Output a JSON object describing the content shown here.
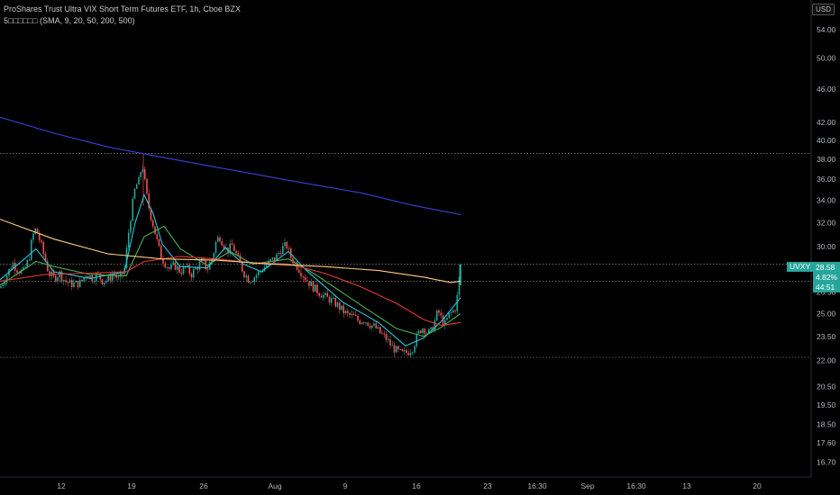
{
  "header": {
    "title": "ProShares Trust Ultra VIX Short Term Futures ETF, 1h, Cboe BZX",
    "indicator": "5□□□□□□ (SMA, 9, 20, 50, 200, 500)",
    "currency": "USD"
  },
  "last": {
    "symbol": "UVXY",
    "price": "28.58",
    "change": "4.82%",
    "countdown": "44:51"
  },
  "colors": {
    "background": "#000000",
    "up": "#26a69a",
    "down": "#ef5350",
    "sma9": "#26c6da",
    "sma20": "#4caf50",
    "sma50": "#e53935",
    "sma200": "#ffcc80",
    "sma500": "#3f3fd8"
  },
  "chart_data": {
    "type": "candlestick",
    "title": "ProShares Trust Ultra VIX Short Term Futures ETF, 1h, Cboe BZX",
    "y_scale": "log",
    "ylim": [
      16.2,
      58.0
    ],
    "y_ticks": [
      16.7,
      17.6,
      18.5,
      19.5,
      20.5,
      22.0,
      23.5,
      25.0,
      26.5,
      28.58,
      30.0,
      32.0,
      34.0,
      36.0,
      38.0,
      40.0,
      42.0,
      46.0,
      50.0,
      54.0
    ],
    "y_tick_labels": [
      "16.70",
      "17.60",
      "18.50",
      "19.50",
      "20.50",
      "22.00",
      "23.50",
      "25.00",
      "26.50",
      "",
      "30.00",
      "32.00",
      "34.00",
      "36.00",
      "38.00",
      "40.00",
      "42.00",
      "46.00",
      "50.00",
      "54.00"
    ],
    "x_ticks": [
      "12",
      "19",
      "26",
      "Aug",
      "9",
      "16",
      "23",
      "16:30",
      "Sep",
      "16:30",
      "13",
      "20"
    ],
    "horizontal_lines": [
      38.6,
      28.58,
      27.3,
      22.2
    ],
    "close_path": [
      [
        0,
        26.8
      ],
      [
        8,
        27.8
      ],
      [
        14,
        28.7
      ],
      [
        20,
        28.1
      ],
      [
        26,
        28.0
      ],
      [
        32,
        29.0
      ],
      [
        36,
        30.8
      ],
      [
        40,
        31.5
      ],
      [
        44,
        30.5
      ],
      [
        48,
        29.5
      ],
      [
        54,
        27.9
      ],
      [
        60,
        27.5
      ],
      [
        66,
        27.9
      ],
      [
        72,
        27.3
      ],
      [
        78,
        27.1
      ],
      [
        84,
        27.1
      ],
      [
        90,
        27.2
      ],
      [
        96,
        27.9
      ],
      [
        102,
        27.5
      ],
      [
        108,
        27.8
      ],
      [
        114,
        27.3
      ],
      [
        120,
        27.4
      ],
      [
        126,
        27.9
      ],
      [
        132,
        27.4
      ],
      [
        138,
        28.1
      ],
      [
        144,
        32.0
      ],
      [
        150,
        35.2
      ],
      [
        154,
        35.8
      ],
      [
        158,
        37.6
      ],
      [
        162,
        34.8
      ],
      [
        166,
        33.0
      ],
      [
        170,
        31.8
      ],
      [
        174,
        30.5
      ],
      [
        178,
        29.3
      ],
      [
        182,
        28.8
      ],
      [
        188,
        28.2
      ],
      [
        194,
        28.5
      ],
      [
        200,
        28.0
      ],
      [
        206,
        28.4
      ],
      [
        212,
        27.8
      ],
      [
        218,
        28.3
      ],
      [
        224,
        28.8
      ],
      [
        230,
        28.2
      ],
      [
        236,
        29.2
      ],
      [
        240,
        30.5
      ],
      [
        244,
        30.8
      ],
      [
        248,
        30.2
      ],
      [
        252,
        29.6
      ],
      [
        258,
        30.1
      ],
      [
        264,
        29.0
      ],
      [
        270,
        28.0
      ],
      [
        276,
        27.4
      ],
      [
        282,
        27.6
      ],
      [
        288,
        28.0
      ],
      [
        294,
        28.4
      ],
      [
        300,
        28.8
      ],
      [
        306,
        29.1
      ],
      [
        312,
        29.8
      ],
      [
        318,
        30.1
      ],
      [
        322,
        29.2
      ],
      [
        326,
        28.8
      ],
      [
        332,
        28.2
      ],
      [
        338,
        27.6
      ],
      [
        344,
        27.1
      ],
      [
        350,
        26.7
      ],
      [
        356,
        26.4
      ],
      [
        362,
        26.1
      ],
      [
        368,
        25.9
      ],
      [
        374,
        25.6
      ],
      [
        380,
        25.2
      ],
      [
        386,
        24.9
      ],
      [
        392,
        24.8
      ],
      [
        398,
        24.5
      ],
      [
        404,
        24.6
      ],
      [
        410,
        24.3
      ],
      [
        416,
        24.1
      ],
      [
        422,
        23.7
      ],
      [
        428,
        23.4
      ],
      [
        434,
        22.9
      ],
      [
        440,
        22.6
      ],
      [
        446,
        22.4
      ],
      [
        452,
        22.5
      ],
      [
        458,
        22.8
      ],
      [
        462,
        23.4
      ],
      [
        466,
        23.9
      ],
      [
        470,
        24.1
      ],
      [
        474,
        23.7
      ],
      [
        478,
        23.8
      ],
      [
        482,
        24.4
      ],
      [
        486,
        25.2
      ],
      [
        490,
        24.6
      ],
      [
        494,
        24.3
      ],
      [
        498,
        24.9
      ],
      [
        502,
        25.1
      ],
      [
        506,
        25.5
      ],
      [
        509,
        27.1
      ],
      [
        511,
        28.58
      ]
    ],
    "sma_paths": [
      {
        "name": "SMA 9",
        "points": [
          [
            0,
            27.4
          ],
          [
            40,
            29.8
          ],
          [
            60,
            28.0
          ],
          [
            100,
            27.5
          ],
          [
            138,
            28.0
          ],
          [
            150,
            32.0
          ],
          [
            160,
            34.5
          ],
          [
            170,
            32.8
          ],
          [
            180,
            30.2
          ],
          [
            200,
            28.4
          ],
          [
            230,
            28.3
          ],
          [
            250,
            29.9
          ],
          [
            270,
            28.6
          ],
          [
            290,
            28.0
          ],
          [
            320,
            29.6
          ],
          [
            340,
            28.1
          ],
          [
            380,
            25.8
          ],
          [
            420,
            24.4
          ],
          [
            450,
            22.9
          ],
          [
            470,
            23.4
          ],
          [
            490,
            24.5
          ],
          [
            511,
            26.1
          ]
        ]
      },
      {
        "name": "SMA 20",
        "points": [
          [
            0,
            27.0
          ],
          [
            40,
            28.8
          ],
          [
            60,
            28.4
          ],
          [
            100,
            27.8
          ],
          [
            140,
            27.7
          ],
          [
            160,
            30.8
          ],
          [
            182,
            31.7
          ],
          [
            200,
            29.8
          ],
          [
            230,
            28.5
          ],
          [
            255,
            29.6
          ],
          [
            280,
            28.6
          ],
          [
            320,
            29.0
          ],
          [
            350,
            27.8
          ],
          [
            400,
            25.6
          ],
          [
            440,
            24.0
          ],
          [
            470,
            23.5
          ],
          [
            490,
            24.1
          ],
          [
            511,
            25.0
          ]
        ]
      },
      {
        "name": "SMA 50",
        "points": [
          [
            0,
            27.3
          ],
          [
            50,
            27.8
          ],
          [
            100,
            27.9
          ],
          [
            140,
            28.0
          ],
          [
            160,
            28.8
          ],
          [
            200,
            29.2
          ],
          [
            240,
            29.0
          ],
          [
            280,
            28.7
          ],
          [
            320,
            28.6
          ],
          [
            360,
            27.9
          ],
          [
            400,
            26.9
          ],
          [
            440,
            25.7
          ],
          [
            470,
            24.6
          ],
          [
            490,
            24.2
          ],
          [
            511,
            24.4
          ]
        ]
      },
      {
        "name": "SMA 200",
        "points": [
          [
            0,
            32.3
          ],
          [
            60,
            30.6
          ],
          [
            120,
            29.4
          ],
          [
            180,
            29.0
          ],
          [
            240,
            28.9
          ],
          [
            300,
            28.6
          ],
          [
            360,
            28.4
          ],
          [
            420,
            28.1
          ],
          [
            470,
            27.6
          ],
          [
            500,
            27.2
          ],
          [
            511,
            27.3
          ]
        ]
      },
      {
        "name": "SMA 500",
        "points": [
          [
            0,
            42.6
          ],
          [
            60,
            40.8
          ],
          [
            120,
            39.3
          ],
          [
            170,
            38.4
          ],
          [
            240,
            37.2
          ],
          [
            320,
            35.9
          ],
          [
            400,
            34.7
          ],
          [
            460,
            33.5
          ],
          [
            511,
            32.7
          ]
        ]
      }
    ]
  }
}
